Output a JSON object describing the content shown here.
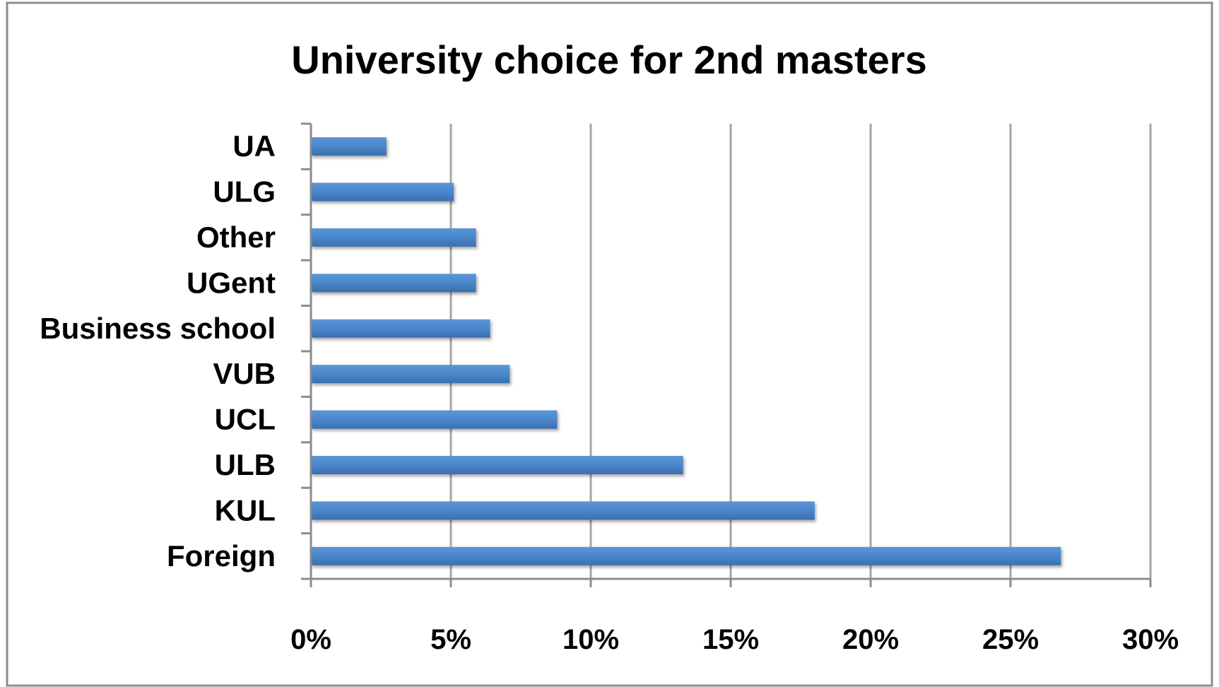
{
  "chart_data": {
    "type": "bar",
    "orientation": "horizontal",
    "title": "University choice for 2nd masters",
    "categories": [
      "Foreign",
      "KUL",
      "ULB",
      "UCL",
      "VUB",
      "Business school",
      "UGent",
      "Other",
      "ULG",
      "UA"
    ],
    "values": [
      26.8,
      18.0,
      13.3,
      8.8,
      7.1,
      6.4,
      5.9,
      5.9,
      5.1,
      2.7
    ],
    "value_unit": "%",
    "xlim": [
      0,
      30
    ],
    "x_ticks": [
      "0%",
      "5%",
      "10%",
      "15%",
      "20%",
      "25%",
      "30%"
    ],
    "xlabel": "",
    "ylabel": "",
    "grid": "vertical",
    "legend": "none",
    "colors": {
      "bar": "#4a86cc",
      "bar_dark": "#3b6fad",
      "grid": "#a6a6a6",
      "axis": "#8c8c8c",
      "frame": "#8c8c8c",
      "text": "#000000"
    }
  }
}
